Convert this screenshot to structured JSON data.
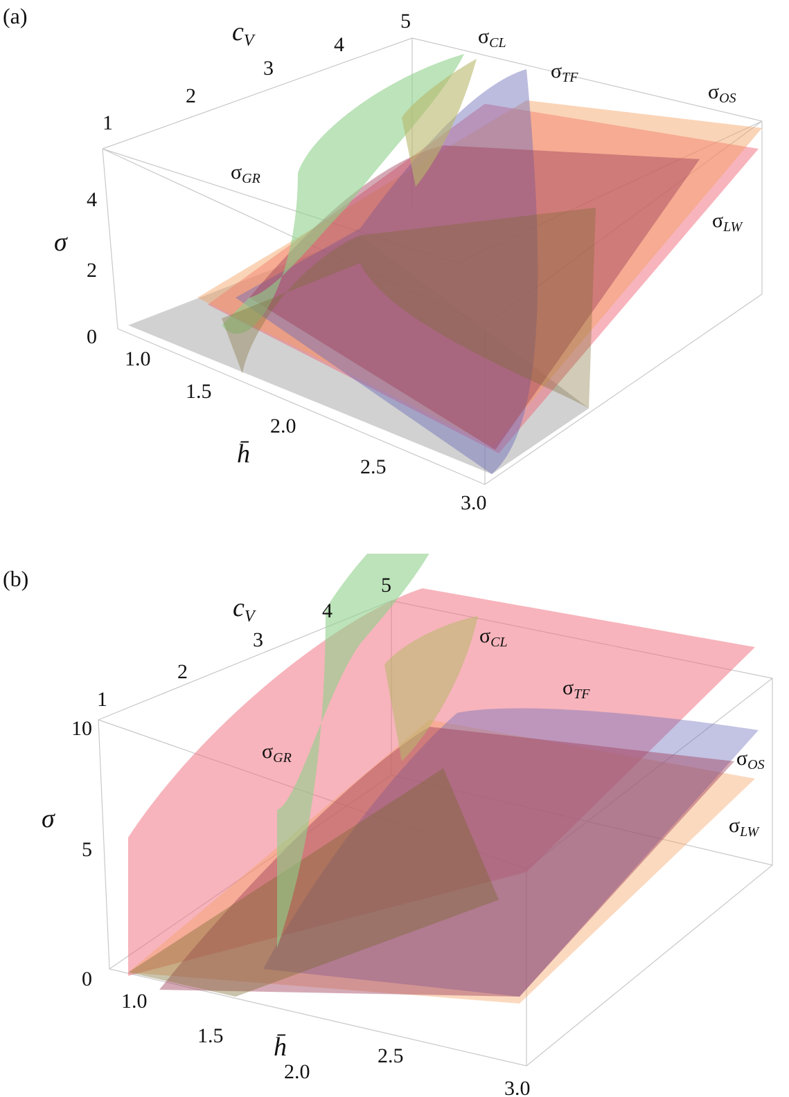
{
  "chart_data": [
    {
      "type": "surface3d",
      "panel_label": "(a)",
      "x_axis": {
        "label": "h̄",
        "ticks": [
          "1.0",
          "1.5",
          "2.0",
          "2.5",
          "3.0"
        ],
        "range": [
          1.0,
          3.0
        ]
      },
      "y_axis": {
        "label": "c_V",
        "ticks": [
          "1",
          "2",
          "3",
          "4",
          "5"
        ],
        "range": [
          1,
          5
        ]
      },
      "z_axis": {
        "label": "σ",
        "ticks": [
          "0",
          "2",
          "4"
        ],
        "range": [
          0,
          5
        ]
      },
      "series": [
        {
          "name": "σ_GR",
          "base": "σ",
          "sub": "GR",
          "color": "#5a8a3a"
        },
        {
          "name": "σ_CL",
          "base": "σ",
          "sub": "CL",
          "color": "#8fd08a"
        },
        {
          "name": "σ_TF",
          "base": "σ",
          "sub": "TF",
          "color": "#6a6ab8"
        },
        {
          "name": "σ_OS",
          "base": "σ",
          "sub": "OS",
          "color": "#f4b870"
        },
        {
          "name": "σ_LW",
          "base": "σ",
          "sub": "LW",
          "color": "#f06a7a"
        }
      ]
    },
    {
      "type": "surface3d",
      "panel_label": "(b)",
      "x_axis": {
        "label": "h̄",
        "ticks": [
          "1.0",
          "1.5",
          "2.0",
          "2.5",
          "3.0"
        ],
        "range": [
          1.0,
          3.0
        ]
      },
      "y_axis": {
        "label": "c_V",
        "ticks": [
          "1",
          "2",
          "3",
          "4",
          "5"
        ],
        "range": [
          1,
          5
        ]
      },
      "z_axis": {
        "label": "σ",
        "ticks": [
          "0",
          "5",
          "10"
        ],
        "range": [
          0,
          10
        ]
      },
      "series": [
        {
          "name": "σ_GR",
          "base": "σ",
          "sub": "GR",
          "color": "#5a8a3a"
        },
        {
          "name": "σ_CL",
          "base": "σ",
          "sub": "CL",
          "color": "#8fd08a"
        },
        {
          "name": "σ_TF",
          "base": "σ",
          "sub": "TF",
          "color": "#6a6ab8"
        },
        {
          "name": "σ_OS",
          "base": "σ",
          "sub": "OS",
          "color": "#f4b870"
        },
        {
          "name": "σ_LW",
          "base": "σ",
          "sub": "LW",
          "color": "#f06a7a"
        }
      ]
    }
  ]
}
